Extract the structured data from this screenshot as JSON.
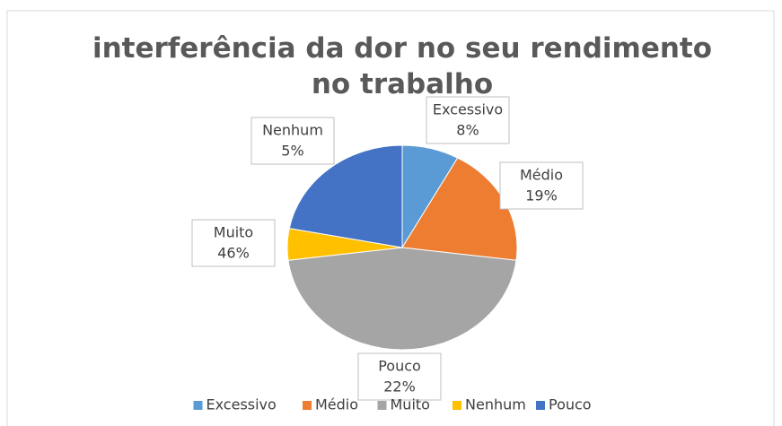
{
  "chart_data": {
    "type": "pie",
    "title": "interferência da dor no seu rendimento no trabalho",
    "categories": [
      "Excessivo",
      "Médio",
      "Muito",
      "Nenhum",
      "Pouco"
    ],
    "values": [
      8,
      19,
      46,
      5,
      22
    ],
    "value_labels": [
      "8%",
      "19%",
      "46%",
      "5%",
      "22%"
    ],
    "colors": [
      "#5b9bd5",
      "#ed7d31",
      "#a5a5a5",
      "#ffc000",
      "#4472c4"
    ],
    "legend": "bottom"
  }
}
